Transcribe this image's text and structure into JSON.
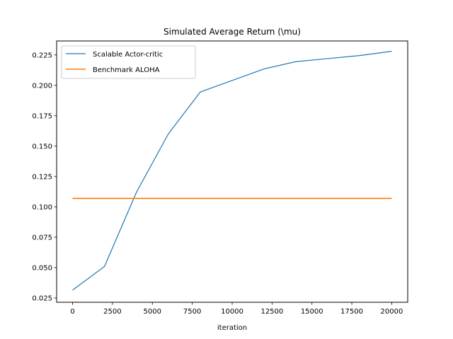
{
  "chart_data": {
    "type": "line",
    "title": "Simulated Average Return (\\mu)",
    "xlabel": "iteration",
    "ylabel": "",
    "xlim": [
      -1000,
      21000
    ],
    "ylim": [
      0.0215,
      0.2365
    ],
    "grid": false,
    "legend": "top-left",
    "xticks": [
      0,
      2500,
      5000,
      7500,
      10000,
      12500,
      15000,
      17500,
      20000
    ],
    "xtick_labels": [
      "0",
      "2500",
      "5000",
      "7500",
      "10000",
      "12500",
      "15000",
      "17500",
      "20000"
    ],
    "yticks": [
      0.025,
      0.05,
      0.075,
      0.1,
      0.125,
      0.15,
      0.175,
      0.2,
      0.225
    ],
    "ytick_labels": [
      "0.025",
      "0.050",
      "0.075",
      "0.100",
      "0.125",
      "0.150",
      "0.175",
      "0.200",
      "0.225"
    ],
    "series": [
      {
        "name": "Scalable Actor-critic",
        "color": "#1f77b4",
        "x": [
          0,
          2000,
          4000,
          6000,
          8000,
          10000,
          12000,
          14000,
          16000,
          18000,
          20000
        ],
        "y": [
          0.0315,
          0.051,
          0.112,
          0.16,
          0.1945,
          0.204,
          0.2135,
          0.2195,
          0.222,
          0.2245,
          0.228
        ]
      },
      {
        "name": "Benchmark ALOHA",
        "color": "#ff7f0e",
        "x": [
          0,
          20000
        ],
        "y": [
          0.107,
          0.107
        ]
      }
    ]
  }
}
